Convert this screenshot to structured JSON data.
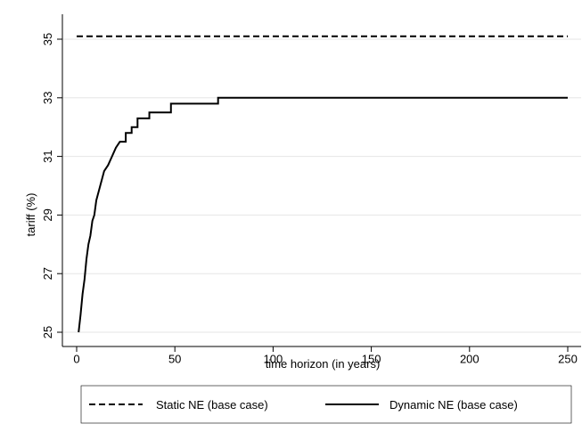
{
  "chart_data": {
    "type": "line",
    "title": "",
    "xlabel": "time horizon (in years)",
    "ylabel": "tariff (%)",
    "xlim": [
      0,
      250
    ],
    "ylim": [
      25,
      35
    ],
    "x_ticks": [
      0,
      50,
      100,
      150,
      200,
      250
    ],
    "y_ticks": [
      25,
      27,
      29,
      31,
      33,
      35
    ],
    "grid": "horizontal",
    "legend_position": "bottom",
    "series": [
      {
        "name": "Static NE (base case)",
        "style": "dashed",
        "color": "#000000",
        "x": [
          0,
          250
        ],
        "y": [
          35.1,
          35.1
        ]
      },
      {
        "name": "Dynamic NE (base case)",
        "style": "solid",
        "color": "#000000",
        "x": [
          1,
          2,
          3,
          4,
          5,
          6,
          7,
          8,
          9,
          10,
          12,
          14,
          16,
          18,
          20,
          22,
          25,
          28,
          31,
          37,
          48,
          72,
          250
        ],
        "y": [
          25.0,
          25.6,
          26.3,
          26.8,
          27.5,
          28.0,
          28.3,
          28.8,
          29.0,
          29.5,
          30.0,
          30.5,
          30.7,
          31.0,
          31.3,
          31.5,
          31.8,
          32.0,
          32.3,
          32.5,
          32.8,
          33.0,
          33.0
        ]
      }
    ]
  }
}
